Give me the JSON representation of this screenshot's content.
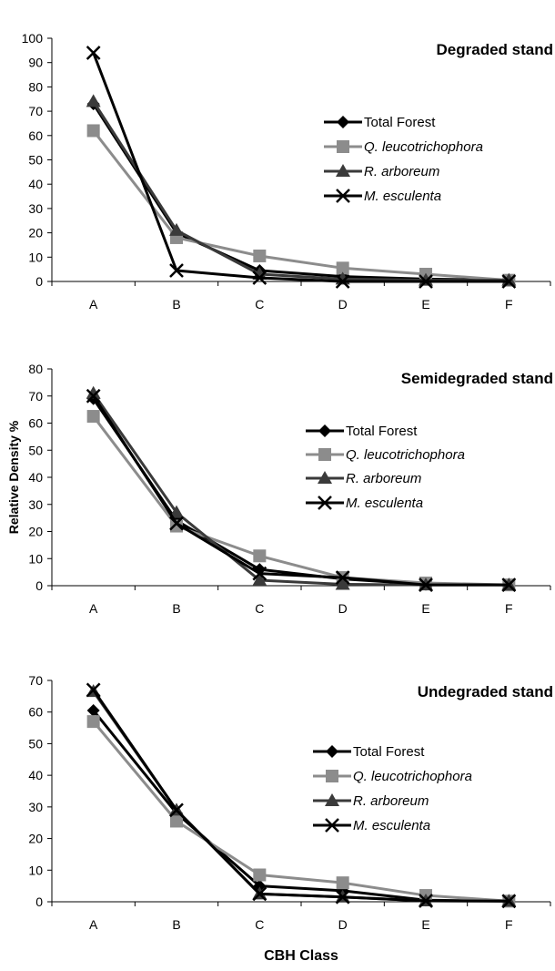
{
  "chart_data": [
    {
      "type": "line",
      "title": "Degraded stand",
      "categories": [
        "A",
        "B",
        "C",
        "D",
        "E",
        "F"
      ],
      "ylim": [
        0,
        100
      ],
      "yticks": [
        0,
        10,
        20,
        30,
        40,
        50,
        60,
        70,
        80,
        90,
        100
      ],
      "ylabel": "",
      "xlabel": "",
      "legend": "right",
      "series": [
        {
          "name": "Total Forest",
          "values": [
            73,
            20,
            4.5,
            2,
            1,
            0.5
          ]
        },
        {
          "name": "Q. leucotrichophora",
          "values": [
            62,
            18,
            10.5,
            5.5,
            3,
            0.5
          ]
        },
        {
          "name": "R. arboreum",
          "values": [
            74,
            21,
            3,
            1,
            0.5,
            0.5
          ]
        },
        {
          "name": "M. esculenta",
          "values": [
            94,
            4.5,
            1.5,
            0,
            0,
            0
          ]
        }
      ]
    },
    {
      "type": "line",
      "title": "Semidegraded stand",
      "categories": [
        "A",
        "B",
        "C",
        "D",
        "E",
        "F"
      ],
      "ylim": [
        0,
        80
      ],
      "yticks": [
        0,
        10,
        20,
        30,
        40,
        50,
        60,
        70,
        80
      ],
      "ylabel": "Relative Density %",
      "xlabel": "",
      "legend": "right",
      "series": [
        {
          "name": "Total Forest",
          "values": [
            69,
            24,
            6,
            2.5,
            0.5,
            0.3
          ]
        },
        {
          "name": "Q. leucotrichophora",
          "values": [
            62.5,
            22,
            11,
            3,
            1,
            0.3
          ]
        },
        {
          "name": "R. arboreum",
          "values": [
            71,
            27,
            2,
            0.5,
            0.3,
            0.3
          ]
        },
        {
          "name": "M. esculenta",
          "values": [
            70,
            23,
            4.5,
            3,
            0.3,
            0.3
          ]
        }
      ]
    },
    {
      "type": "line",
      "title": "Undegraded stand",
      "categories": [
        "A",
        "B",
        "C",
        "D",
        "E",
        "F"
      ],
      "ylim": [
        0,
        70
      ],
      "yticks": [
        0,
        10,
        20,
        30,
        40,
        50,
        60,
        70
      ],
      "ylabel": "",
      "xlabel": "CBH Class",
      "legend": "right",
      "series": [
        {
          "name": "Total Forest",
          "values": [
            60.5,
            28,
            5,
            3.5,
            0.5,
            0.2
          ]
        },
        {
          "name": "Q. leucotrichophora",
          "values": [
            57,
            25.5,
            8.5,
            6,
            2,
            0.2
          ]
        },
        {
          "name": "R. arboreum",
          "values": [
            66.5,
            29,
            2.5,
            1.5,
            0.3,
            0.2
          ]
        },
        {
          "name": "M. esculenta",
          "values": [
            67,
            29,
            2.5,
            1.5,
            0.3,
            0.2
          ]
        }
      ]
    }
  ]
}
